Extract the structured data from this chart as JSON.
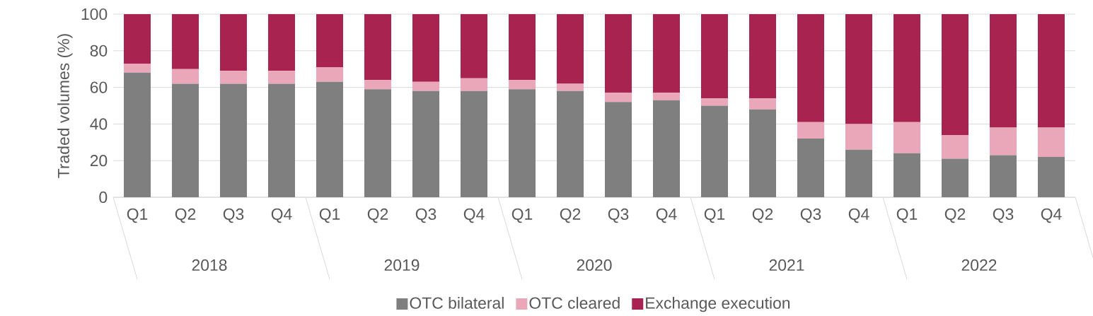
{
  "chart_data": {
    "type": "bar",
    "stacked": true,
    "ylabel": "Traded volumes (%)",
    "categories": [
      "Q1",
      "Q2",
      "Q3",
      "Q4",
      "Q1",
      "Q2",
      "Q3",
      "Q4",
      "Q1",
      "Q2",
      "Q3",
      "Q4",
      "Q1",
      "Q2",
      "Q3",
      "Q4",
      "Q1",
      "Q2",
      "Q3",
      "Q4"
    ],
    "series": [
      {
        "name": "OTC bilateral",
        "color": "#7f7f7f",
        "values": [
          68,
          62,
          62,
          62,
          63,
          59,
          58,
          58,
          59,
          58,
          52,
          53,
          50,
          48,
          32,
          26,
          24,
          21,
          23,
          22
        ]
      },
      {
        "name": "OTC cleared",
        "color": "#eba7ba",
        "values": [
          5,
          8,
          7,
          7,
          8,
          5,
          5,
          7,
          5,
          4,
          5,
          4,
          4,
          6,
          9,
          14,
          17,
          13,
          15,
          16
        ]
      },
      {
        "name": "Exchange execution",
        "color": "#a82350",
        "values": [
          27,
          30,
          31,
          31,
          29,
          36,
          37,
          35,
          36,
          38,
          43,
          43,
          46,
          46,
          59,
          60,
          59,
          66,
          62,
          62
        ]
      }
    ],
    "annotations": [
      "2018",
      "2019",
      "2020",
      "2021",
      "2022"
    ],
    "ylim": [
      0,
      100
    ],
    "yticks": [
      0,
      20,
      40,
      60,
      80,
      100
    ],
    "grid": "y",
    "legend": "bottom"
  }
}
